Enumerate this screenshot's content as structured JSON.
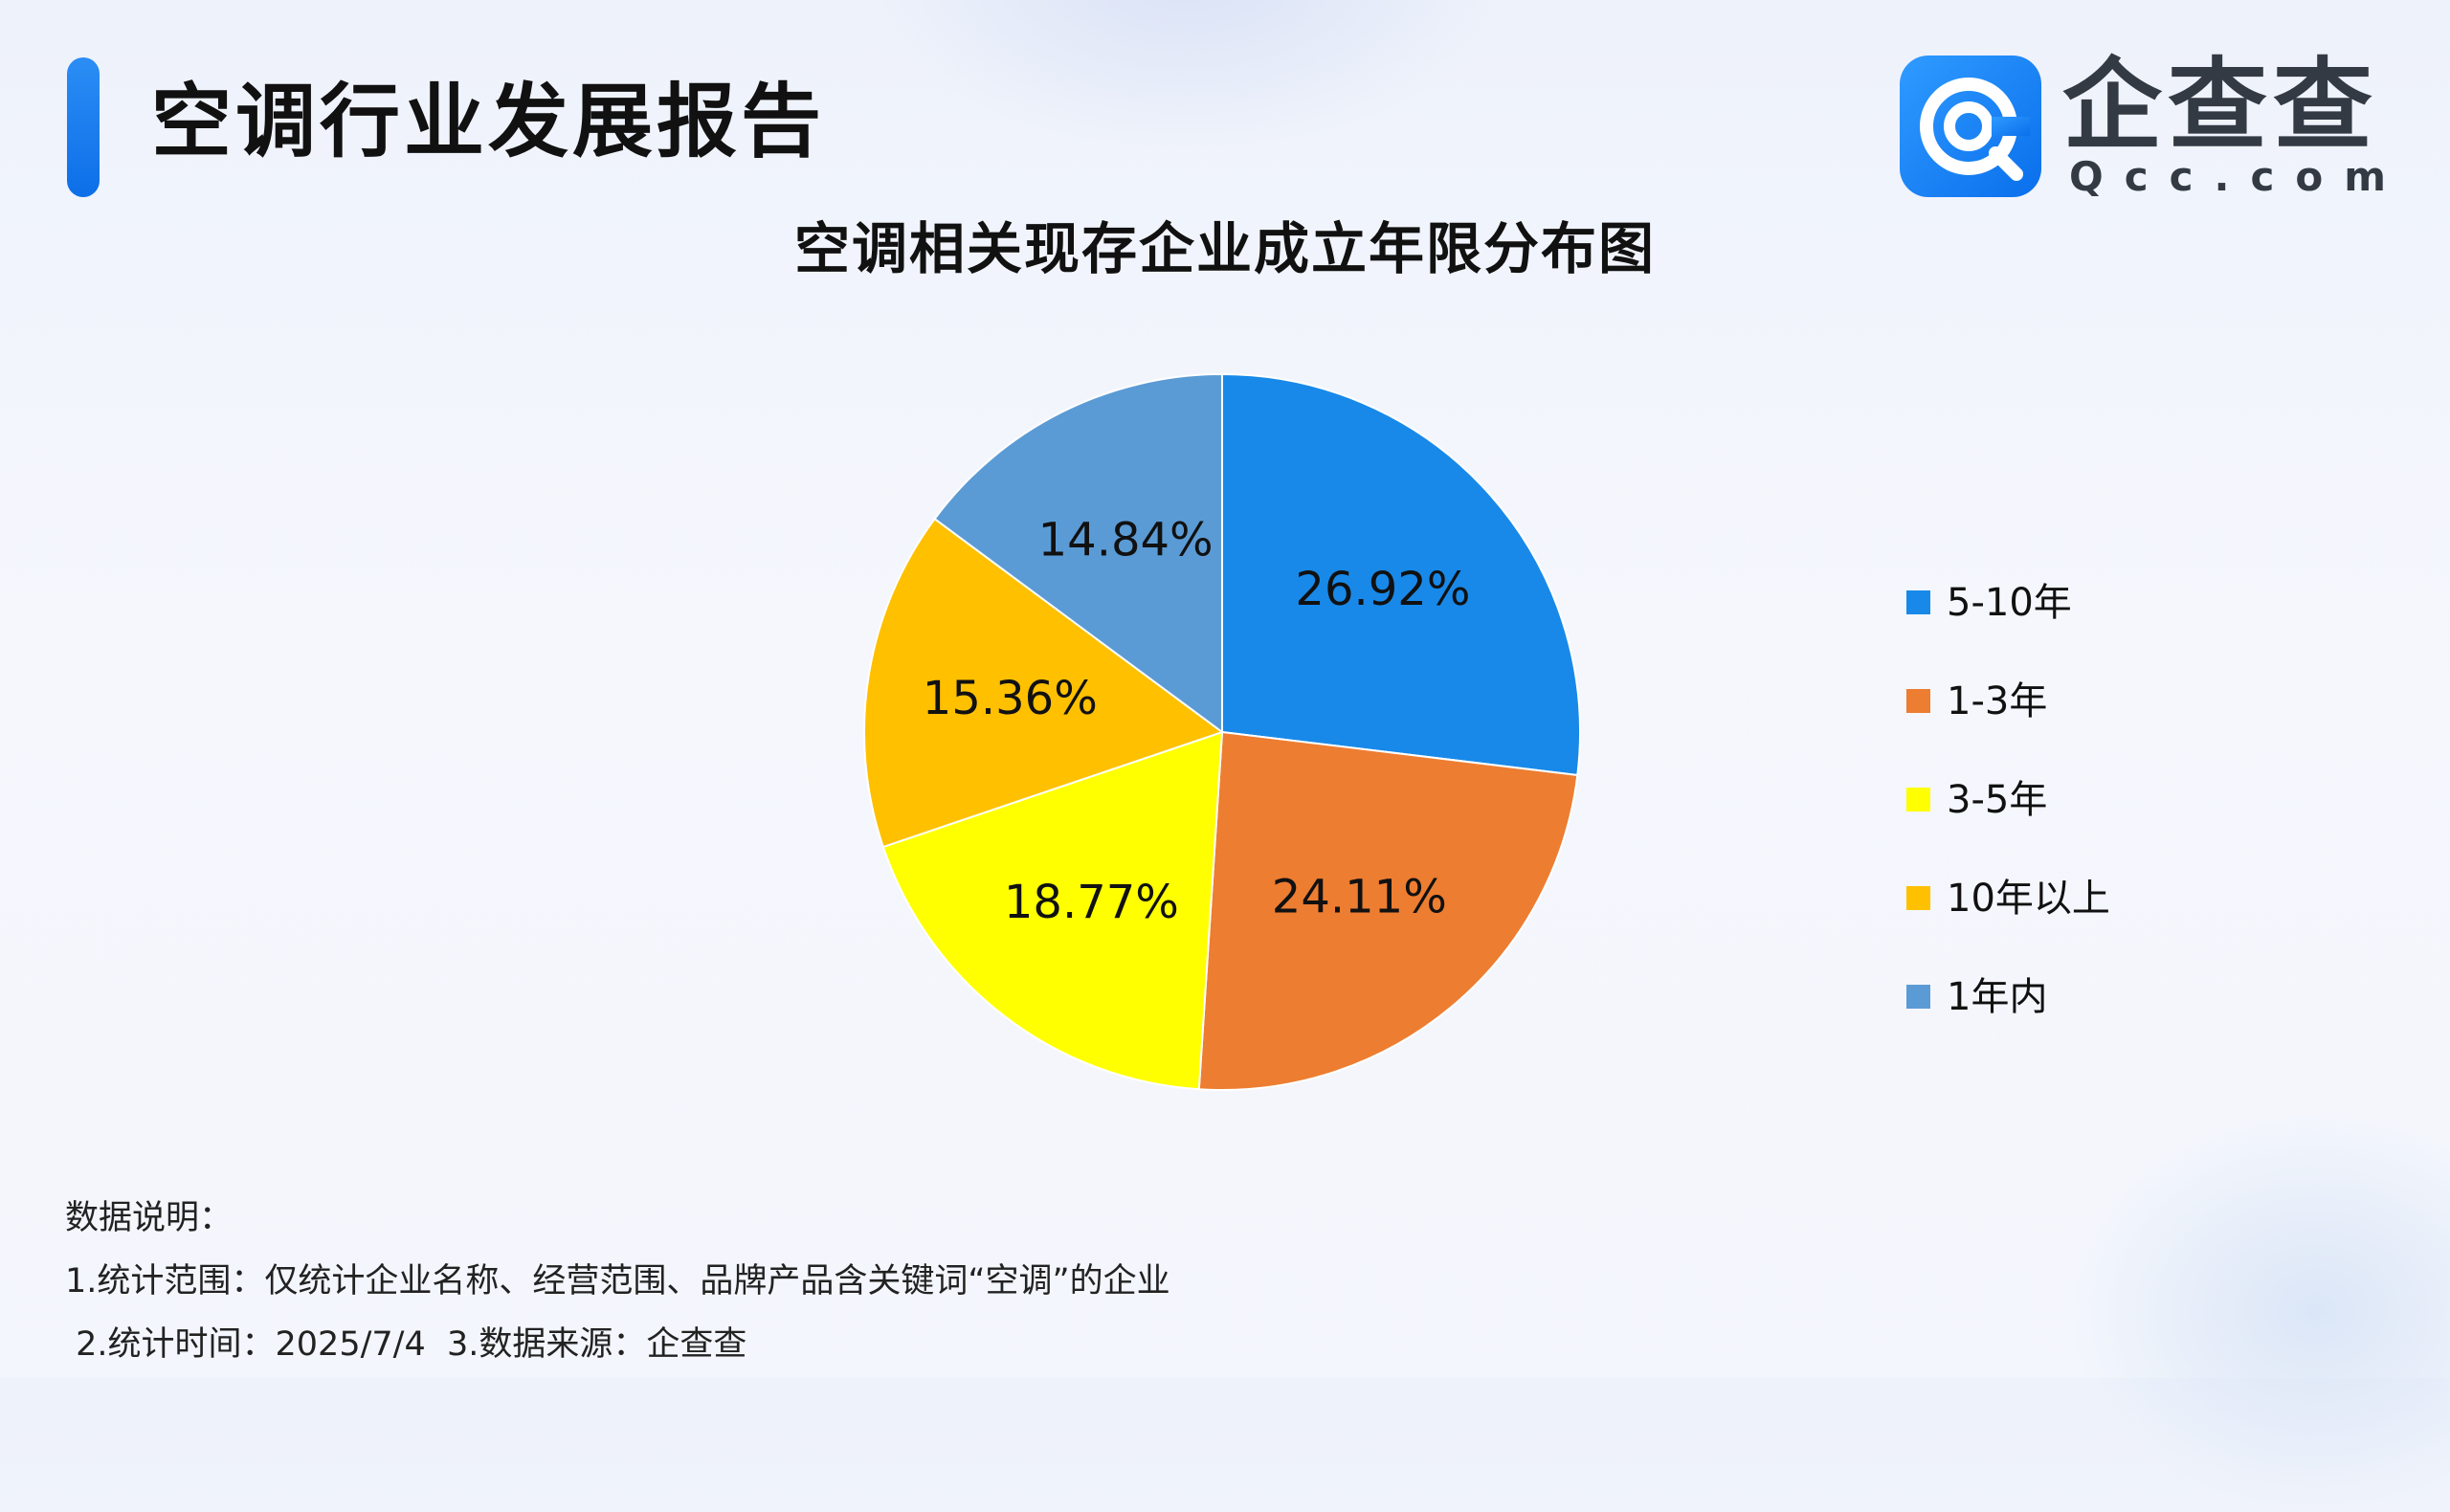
{
  "header": {
    "title": "空调行业发展报告",
    "logo_text": "企查查",
    "logo_sub": "Qcc.com"
  },
  "chart_data": {
    "type": "pie",
    "title": "空调相关现存企业成立年限分布图",
    "categories": [
      "5-10年",
      "1-3年",
      "3-5年",
      "10年以上",
      "1年内"
    ],
    "values": [
      26.92,
      24.11,
      18.77,
      15.36,
      14.84
    ],
    "labels": [
      "26.92%",
      "24.11%",
      "18.77%",
      "15.36%",
      "14.84%"
    ],
    "colors": [
      "#1889e9",
      "#ed7d31",
      "#ffff00",
      "#ffc000",
      "#5b9bd5"
    ],
    "start": "12 o'clock",
    "direction": "clockwise",
    "legend_position": "right"
  },
  "notes": {
    "heading": "数据说明：",
    "line1": "1.统计范围：仅统计企业名称、经营范围、品牌产品含关键词“空调”的企业",
    "line2": " 2.统计时间：2025/7/4  3.数据来源：企查查"
  },
  "icons": {
    "logo": "qcc-logo-icon"
  }
}
